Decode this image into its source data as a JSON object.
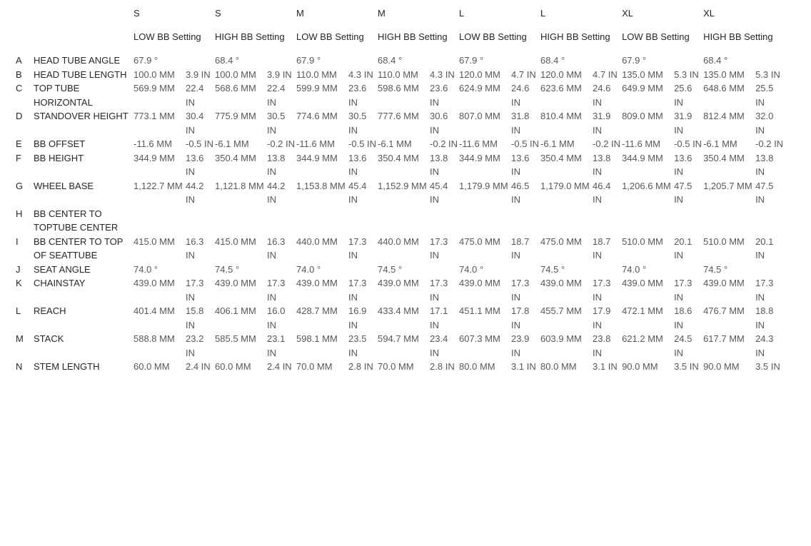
{
  "colors": {
    "background": "#ffffff",
    "label_text": "#262626",
    "value_text": "#55585a"
  },
  "table": {
    "column_groups": [
      {
        "size": "S",
        "setting": "LOW BB Setting"
      },
      {
        "size": "S",
        "setting": "HIGH BB Setting"
      },
      {
        "size": "M",
        "setting": "LOW BB Setting"
      },
      {
        "size": "M",
        "setting": "HIGH BB Setting"
      },
      {
        "size": "L",
        "setting": "LOW BB Setting"
      },
      {
        "size": "L",
        "setting": "HIGH BB Setting"
      },
      {
        "size": "XL",
        "setting": "LOW BB Setting"
      },
      {
        "size": "XL",
        "setting": "HIGH BB Setting"
      }
    ],
    "rows": [
      {
        "letter": "A",
        "label": "HEAD TUBE ANGLE",
        "cells": [
          {
            "mm": "67.9 °",
            "in": ""
          },
          {
            "mm": "68.4 °",
            "in": ""
          },
          {
            "mm": "67.9 °",
            "in": ""
          },
          {
            "mm": "68.4 °",
            "in": ""
          },
          {
            "mm": "67.9 °",
            "in": ""
          },
          {
            "mm": "68.4 °",
            "in": ""
          },
          {
            "mm": "67.9 °",
            "in": ""
          },
          {
            "mm": "68.4 °",
            "in": ""
          }
        ]
      },
      {
        "letter": "B",
        "label": "HEAD TUBE LENGTH",
        "cells": [
          {
            "mm": "100.0 MM",
            "in": "3.9 IN"
          },
          {
            "mm": "100.0 MM",
            "in": "3.9 IN"
          },
          {
            "mm": "110.0 MM",
            "in": "4.3 IN"
          },
          {
            "mm": "110.0 MM",
            "in": "4.3 IN"
          },
          {
            "mm": "120.0 MM",
            "in": "4.7 IN"
          },
          {
            "mm": "120.0 MM",
            "in": "4.7 IN"
          },
          {
            "mm": "135.0 MM",
            "in": "5.3 IN"
          },
          {
            "mm": "135.0 MM",
            "in": "5.3 IN"
          }
        ]
      },
      {
        "letter": "C",
        "label": "TOP TUBE HORIZONTAL",
        "cells": [
          {
            "mm": "569.9 MM",
            "in": "22.4 IN"
          },
          {
            "mm": "568.6 MM",
            "in": "22.4 IN"
          },
          {
            "mm": "599.9 MM",
            "in": "23.6 IN"
          },
          {
            "mm": "598.6 MM",
            "in": "23.6 IN"
          },
          {
            "mm": "624.9 MM",
            "in": "24.6 IN"
          },
          {
            "mm": "623.6 MM",
            "in": "24.6 IN"
          },
          {
            "mm": "649.9 MM",
            "in": "25.6 IN"
          },
          {
            "mm": "648.6 MM",
            "in": "25.5 IN"
          }
        ]
      },
      {
        "letter": "D",
        "label": "STANDOVER HEIGHT",
        "cells": [
          {
            "mm": "773.1 MM",
            "in": "30.4 IN"
          },
          {
            "mm": "775.9 MM",
            "in": "30.5 IN"
          },
          {
            "mm": "774.6 MM",
            "in": "30.5 IN"
          },
          {
            "mm": "777.6 MM",
            "in": "30.6 IN"
          },
          {
            "mm": "807.0 MM",
            "in": "31.8 IN"
          },
          {
            "mm": "810.4 MM",
            "in": "31.9 IN"
          },
          {
            "mm": "809.0 MM",
            "in": "31.9 IN"
          },
          {
            "mm": "812.4 MM",
            "in": "32.0 IN"
          }
        ]
      },
      {
        "letter": "E",
        "label": "BB OFFSET",
        "cells": [
          {
            "mm": "-11.6 MM",
            "in": "-0.5 IN"
          },
          {
            "mm": "-6.1 MM",
            "in": "-0.2 IN"
          },
          {
            "mm": "-11.6 MM",
            "in": "-0.5 IN"
          },
          {
            "mm": "-6.1 MM",
            "in": "-0.2 IN"
          },
          {
            "mm": "-11.6 MM",
            "in": "-0.5 IN"
          },
          {
            "mm": "-6.1 MM",
            "in": "-0.2 IN"
          },
          {
            "mm": "-11.6 MM",
            "in": "-0.5 IN"
          },
          {
            "mm": "-6.1 MM",
            "in": "-0.2 IN"
          }
        ]
      },
      {
        "letter": "F",
        "label": "BB HEIGHT",
        "cells": [
          {
            "mm": "344.9 MM",
            "in": "13.6 IN"
          },
          {
            "mm": "350.4 MM",
            "in": "13.8 IN"
          },
          {
            "mm": "344.9 MM",
            "in": "13.6 IN"
          },
          {
            "mm": "350.4 MM",
            "in": "13.8 IN"
          },
          {
            "mm": "344.9 MM",
            "in": "13.6 IN"
          },
          {
            "mm": "350.4 MM",
            "in": "13.8 IN"
          },
          {
            "mm": "344.9 MM",
            "in": "13.6 IN"
          },
          {
            "mm": "350.4 MM",
            "in": "13.8 IN"
          }
        ]
      },
      {
        "letter": "G",
        "label": "WHEEL BASE",
        "cells": [
          {
            "mm": "1,122.7 MM",
            "in": "44.2 IN"
          },
          {
            "mm": "1,121.8 MM",
            "in": "44.2 IN"
          },
          {
            "mm": "1,153.8 MM",
            "in": "45.4 IN"
          },
          {
            "mm": "1,152.9 MM",
            "in": "45.4 IN"
          },
          {
            "mm": "1,179.9 MM",
            "in": "46.5 IN"
          },
          {
            "mm": "1,179.0 MM",
            "in": "46.4 IN"
          },
          {
            "mm": "1,206.6 MM",
            "in": "47.5 IN"
          },
          {
            "mm": "1,205.7 MM",
            "in": "47.5 IN"
          }
        ]
      },
      {
        "letter": "H",
        "label": "BB CENTER TO TOPTUBE CENTER",
        "cells": [
          {
            "mm": "",
            "in": ""
          },
          {
            "mm": "",
            "in": ""
          },
          {
            "mm": "",
            "in": ""
          },
          {
            "mm": "",
            "in": ""
          },
          {
            "mm": "",
            "in": ""
          },
          {
            "mm": "",
            "in": ""
          },
          {
            "mm": "",
            "in": ""
          },
          {
            "mm": "",
            "in": ""
          }
        ]
      },
      {
        "letter": "I",
        "label": "BB CENTER TO TOP OF SEATTUBE",
        "cells": [
          {
            "mm": "415.0 MM",
            "in": "16.3 IN"
          },
          {
            "mm": "415.0 MM",
            "in": "16.3 IN"
          },
          {
            "mm": "440.0 MM",
            "in": "17.3 IN"
          },
          {
            "mm": "440.0 MM",
            "in": "17.3 IN"
          },
          {
            "mm": "475.0 MM",
            "in": "18.7 IN"
          },
          {
            "mm": "475.0 MM",
            "in": "18.7 IN"
          },
          {
            "mm": "510.0 MM",
            "in": "20.1 IN"
          },
          {
            "mm": "510.0 MM",
            "in": "20.1 IN"
          }
        ]
      },
      {
        "letter": "J",
        "label": "SEAT ANGLE",
        "cells": [
          {
            "mm": "74.0 °",
            "in": ""
          },
          {
            "mm": "74.5 °",
            "in": ""
          },
          {
            "mm": "74.0 °",
            "in": ""
          },
          {
            "mm": "74.5 °",
            "in": ""
          },
          {
            "mm": "74.0 °",
            "in": ""
          },
          {
            "mm": "74.5 °",
            "in": ""
          },
          {
            "mm": "74.0 °",
            "in": ""
          },
          {
            "mm": "74.5 °",
            "in": ""
          }
        ]
      },
      {
        "letter": "K",
        "label": "CHAINSTAY",
        "cells": [
          {
            "mm": "439.0 MM",
            "in": "17.3 IN"
          },
          {
            "mm": "439.0 MM",
            "in": "17.3 IN"
          },
          {
            "mm": "439.0 MM",
            "in": "17.3 IN"
          },
          {
            "mm": "439.0 MM",
            "in": "17.3 IN"
          },
          {
            "mm": "439.0 MM",
            "in": "17.3 IN"
          },
          {
            "mm": "439.0 MM",
            "in": "17.3 IN"
          },
          {
            "mm": "439.0 MM",
            "in": "17.3 IN"
          },
          {
            "mm": "439.0 MM",
            "in": "17.3 IN"
          }
        ]
      },
      {
        "letter": "L",
        "label": "REACH",
        "cells": [
          {
            "mm": "401.4 MM",
            "in": "15.8 IN"
          },
          {
            "mm": "406.1 MM",
            "in": "16.0 IN"
          },
          {
            "mm": "428.7 MM",
            "in": "16.9 IN"
          },
          {
            "mm": "433.4 MM",
            "in": "17.1 IN"
          },
          {
            "mm": "451.1 MM",
            "in": "17.8 IN"
          },
          {
            "mm": "455.7 MM",
            "in": "17.9 IN"
          },
          {
            "mm": "472.1 MM",
            "in": "18.6 IN"
          },
          {
            "mm": "476.7 MM",
            "in": "18.8 IN"
          }
        ]
      },
      {
        "letter": "M",
        "label": "STACK",
        "cells": [
          {
            "mm": "588.8 MM",
            "in": "23.2 IN"
          },
          {
            "mm": "585.5 MM",
            "in": "23.1 IN"
          },
          {
            "mm": "598.1 MM",
            "in": "23.5 IN"
          },
          {
            "mm": "594.7 MM",
            "in": "23.4 IN"
          },
          {
            "mm": "607.3 MM",
            "in": "23.9 IN"
          },
          {
            "mm": "603.9 MM",
            "in": "23.8 IN"
          },
          {
            "mm": "621.2 MM",
            "in": "24.5 IN"
          },
          {
            "mm": "617.7 MM",
            "in": "24.3 IN"
          }
        ]
      },
      {
        "letter": "N",
        "label": "STEM LENGTH",
        "cells": [
          {
            "mm": "60.0 MM",
            "in": "2.4 IN"
          },
          {
            "mm": "60.0 MM",
            "in": "2.4 IN"
          },
          {
            "mm": "70.0 MM",
            "in": "2.8 IN"
          },
          {
            "mm": "70.0 MM",
            "in": "2.8 IN"
          },
          {
            "mm": "80.0 MM",
            "in": "3.1 IN"
          },
          {
            "mm": "80.0 MM",
            "in": "3.1 IN"
          },
          {
            "mm": "90.0 MM",
            "in": "3.5 IN"
          },
          {
            "mm": "90.0 MM",
            "in": "3.5 IN"
          }
        ]
      }
    ]
  }
}
